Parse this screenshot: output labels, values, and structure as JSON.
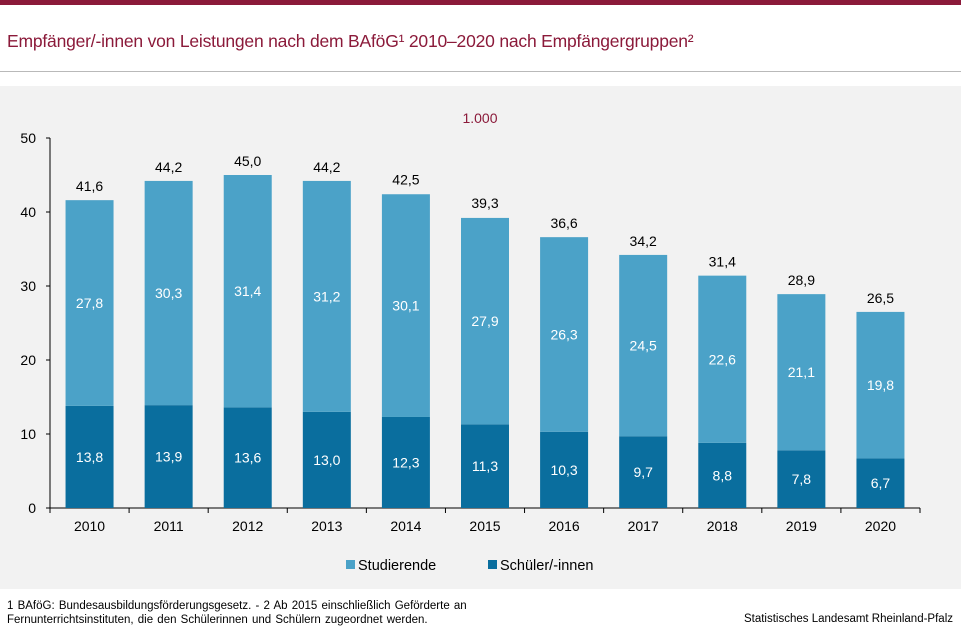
{
  "title": "Empfänger/-innen von Leistungen nach dem BAföG¹ 2010–2020 nach Empfängergruppen²",
  "footnote": "1 BAföG: Bundesausbildungsförderungsgesetz.  - 2 Ab 2015 einschließlich Geförderte an\nFernunterrichtsinstituten, die den Schülerinnen und Schülern zugeordnet werden.",
  "source": "Statistisches Landesamt Rheinland-Pfalz",
  "colors": {
    "accent": "#8b1a3a",
    "studierende": "#4ba2c8",
    "schueler": "#0a6e9e"
  },
  "chart_data": {
    "type": "bar",
    "stacked": true,
    "unit_label": "1.000",
    "categories": [
      "2010",
      "2011",
      "2012",
      "2013",
      "2014",
      "2015",
      "2016",
      "2017",
      "2018",
      "2019",
      "2020"
    ],
    "series": [
      {
        "name": "Schüler/-innen",
        "values": [
          13.8,
          13.9,
          13.6,
          13.0,
          12.3,
          11.3,
          10.3,
          9.7,
          8.8,
          7.8,
          6.7
        ],
        "labels": [
          "13,8",
          "13,9",
          "13,6",
          "13,0",
          "12,3",
          "11,3",
          "10,3",
          "9,7",
          "8,8",
          "7,8",
          "6,7"
        ]
      },
      {
        "name": "Studierende",
        "values": [
          27.8,
          30.3,
          31.4,
          31.2,
          30.1,
          27.9,
          26.3,
          24.5,
          22.6,
          21.1,
          19.8
        ],
        "labels": [
          "27,8",
          "30,3",
          "31,4",
          "31,2",
          "30,1",
          "27,9",
          "26,3",
          "24,5",
          "22,6",
          "21,1",
          "19,8"
        ]
      }
    ],
    "totals": [
      41.6,
      44.2,
      45.0,
      44.2,
      42.5,
      39.3,
      36.6,
      34.2,
      31.4,
      28.9,
      26.5
    ],
    "total_labels": [
      "41,6",
      "44,2",
      "45,0",
      "44,2",
      "42,5",
      "39,3",
      "36,6",
      "34,2",
      "31,4",
      "28,9",
      "26,5"
    ],
    "ylim": [
      0,
      50
    ],
    "yticks": [
      0,
      10,
      20,
      30,
      40,
      50
    ],
    "grid": false,
    "legend_position": "bottom",
    "legend_order": [
      "Studierende",
      "Schüler/-innen"
    ]
  }
}
